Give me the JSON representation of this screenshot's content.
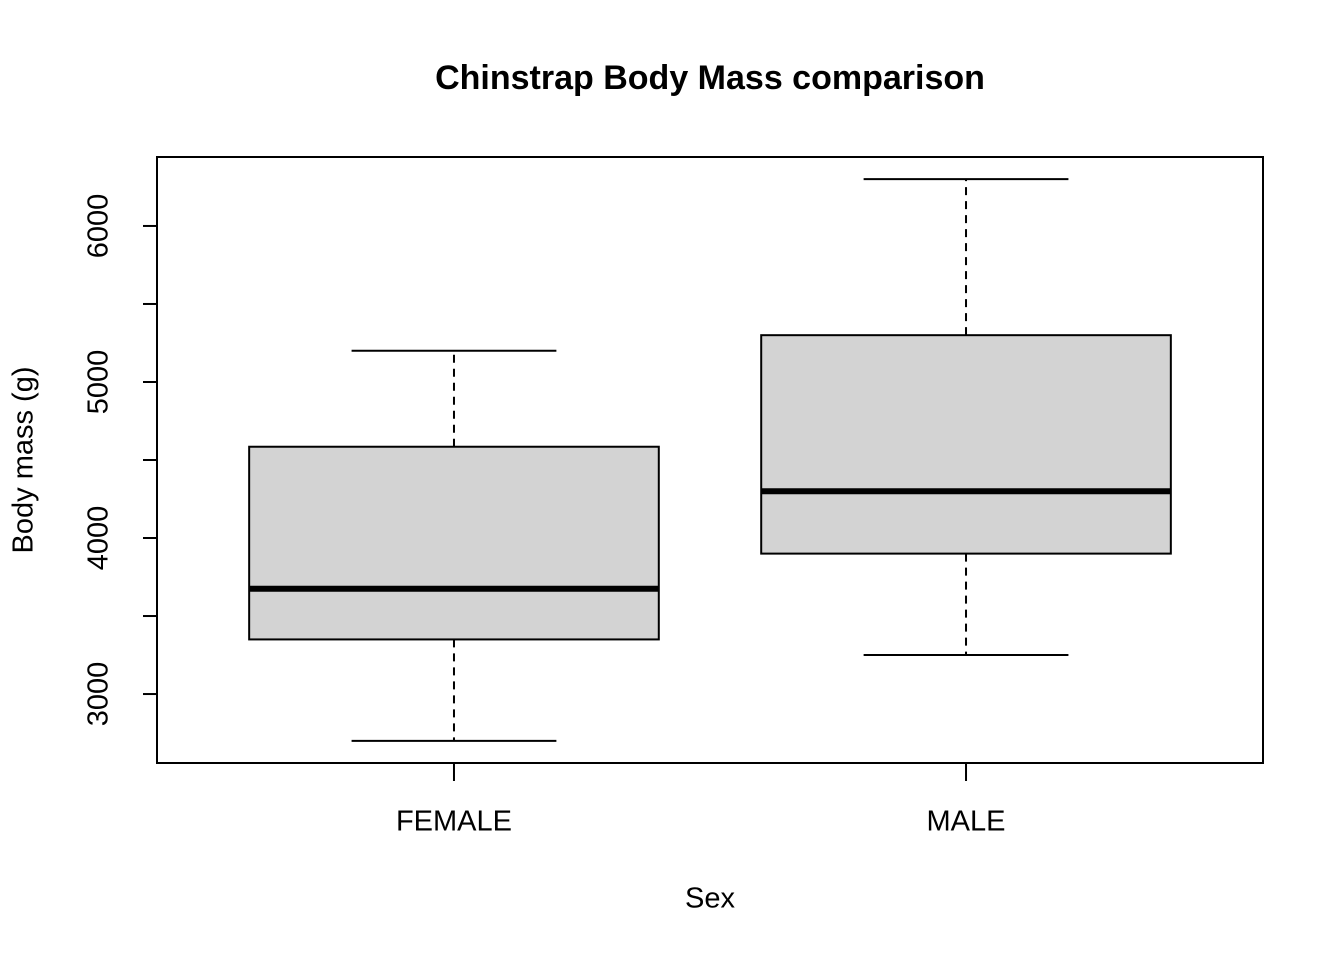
{
  "chart_data": {
    "type": "box",
    "title": "Chinstrap  Body Mass comparison",
    "x_label": "Sex",
    "y_label": "Body mass (g)",
    "categories": [
      "FEMALE",
      "MALE"
    ],
    "boxes": [
      {
        "min": 2700,
        "q1": 3350,
        "median": 3675,
        "q3": 4585,
        "max": 5200
      },
      {
        "min": 3250,
        "q1": 3900,
        "median": 4300,
        "q3": 5300,
        "max": 6300
      }
    ],
    "color": "#d3d3d3",
    "ylim": [
      2558,
      6442
    ],
    "yticks": [
      3000,
      4000,
      5000,
      6000
    ],
    "yminor_ticks": [
      3500,
      4500,
      5500
    ]
  }
}
